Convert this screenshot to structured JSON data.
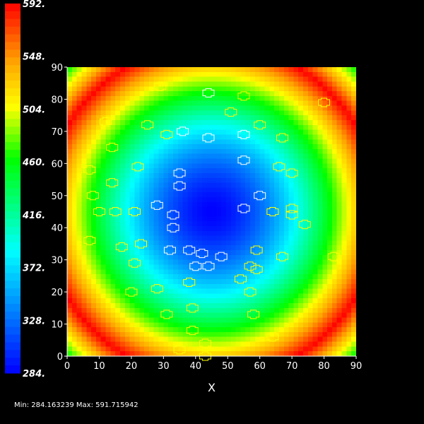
{
  "chart_data": {
    "type": "heatmap",
    "title": "",
    "xlabel": "X",
    "ylabel": "",
    "xlim": [
      0,
      90
    ],
    "ylim": [
      0,
      90
    ],
    "x_ticks": [
      "0",
      "10",
      "20",
      "30",
      "40",
      "50",
      "60",
      "70",
      "80",
      "90"
    ],
    "y_ticks": [
      "0",
      "10",
      "20",
      "30",
      "40",
      "50",
      "60",
      "70",
      "80",
      "90"
    ],
    "value_range": [
      284.163239,
      591.715942
    ],
    "colorbar": {
      "labels": [
        "592.",
        "548.",
        "504.",
        "460.",
        "416.",
        "372.",
        "328.",
        "284."
      ],
      "values": [
        592,
        548,
        504,
        460,
        416,
        372,
        328,
        284
      ],
      "colors": [
        "#ff0000",
        "#ffa500",
        "#ffff00",
        "#00ff00",
        "#00ffff",
        "#0000ff"
      ]
    },
    "grid": false,
    "overlay_contours": {
      "white_centers": [
        [
          44,
          82
        ],
        [
          36,
          70
        ],
        [
          55,
          69
        ],
        [
          44,
          68
        ],
        [
          35,
          57
        ],
        [
          55,
          61
        ],
        [
          35,
          53
        ],
        [
          28,
          47
        ],
        [
          55,
          46
        ],
        [
          60,
          50
        ],
        [
          33,
          44
        ],
        [
          33,
          40
        ],
        [
          32,
          33
        ],
        [
          42,
          32
        ],
        [
          38,
          33
        ],
        [
          44,
          28
        ],
        [
          40,
          28
        ],
        [
          48,
          31
        ]
      ],
      "yellow_centers": [
        [
          29,
          84
        ],
        [
          55,
          81
        ],
        [
          51,
          76
        ],
        [
          80,
          79
        ],
        [
          12,
          73
        ],
        [
          25,
          72
        ],
        [
          60,
          72
        ],
        [
          67,
          68
        ],
        [
          31,
          69
        ],
        [
          14,
          65
        ],
        [
          22,
          59
        ],
        [
          7,
          58
        ],
        [
          66,
          59
        ],
        [
          70,
          57
        ],
        [
          14,
          54
        ],
        [
          8,
          50
        ],
        [
          10,
          45
        ],
        [
          15,
          45
        ],
        [
          21,
          45
        ],
        [
          64,
          45
        ],
        [
          70,
          44
        ],
        [
          70,
          46
        ],
        [
          74,
          41
        ],
        [
          7,
          36
        ],
        [
          17,
          34
        ],
        [
          23,
          35
        ],
        [
          59,
          33
        ],
        [
          67,
          31
        ],
        [
          83,
          31
        ],
        [
          21,
          29
        ],
        [
          57,
          28
        ],
        [
          59,
          27
        ],
        [
          54,
          24
        ],
        [
          38,
          23
        ],
        [
          57,
          20
        ],
        [
          20,
          20
        ],
        [
          28,
          21
        ],
        [
          31,
          13
        ],
        [
          39,
          15
        ],
        [
          58,
          13
        ],
        [
          39,
          8
        ],
        [
          64,
          6
        ],
        [
          43,
          4
        ],
        [
          35,
          2
        ],
        [
          43,
          0
        ]
      ]
    }
  },
  "footer": {
    "minmax_text": "Min: 284.163239 Max: 591.715942"
  }
}
